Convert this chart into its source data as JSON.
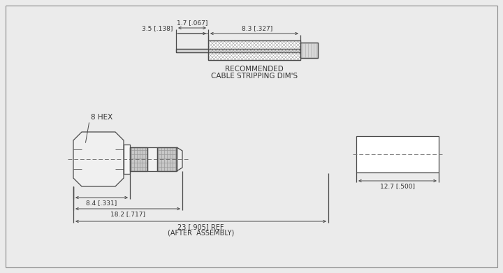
{
  "bg_color": "#ebebeb",
  "line_color": "#4a4a4a",
  "hatch_color": "#888888",
  "text_color": "#333333",
  "cable_strip": {
    "label1": "RECOMMENDED",
    "label2": "CABLE STRIPPING DIM'S",
    "dim_35": "3.5 [.138]",
    "dim_17": "1.7 [.067]",
    "dim_83": "8.3 [.327]"
  },
  "main_view": {
    "hex_label": "8 HEX",
    "dim_84": "8.4 [.331]",
    "dim_182": "18.2 [.717]",
    "dim_23_line1": "23 [.905] REF.",
    "dim_23_line2": "(AFTER  ASSEMBLY)"
  },
  "end_view": {
    "dim_127": "12.7 [.500]"
  }
}
